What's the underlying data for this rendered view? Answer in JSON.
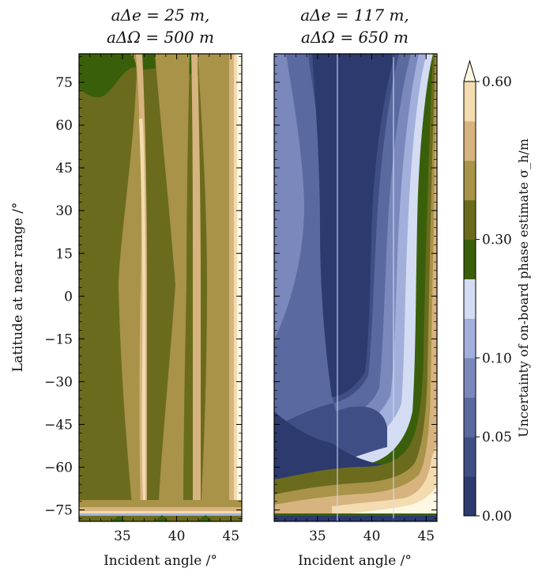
{
  "chart_data": [
    {
      "type": "contour",
      "title_line1": "aΔe = 25 m,",
      "title_line2": "aΔΩ = 500 m",
      "xlabel": "Incident angle /°",
      "ylabel": "Latitude at near range /°",
      "xlim": [
        31,
        46
      ],
      "ylim": [
        -79,
        85
      ],
      "xticks": [
        "35",
        "40",
        "45"
      ],
      "xtick_values": [
        35,
        40,
        45
      ],
      "yticks": [
        "75",
        "60",
        "45",
        "30",
        "15",
        "0",
        "−15",
        "−30",
        "−45",
        "−60",
        "−75"
      ],
      "ytick_values": [
        75,
        60,
        45,
        30,
        15,
        0,
        -15,
        -30,
        -45,
        -60,
        -75
      ],
      "dominant_level_range": [
        0.2,
        0.3
      ],
      "beam_boundaries_deg": [
        36.6,
        41.8
      ]
    },
    {
      "type": "contour",
      "title_line1": "aΔe = 117 m,",
      "title_line2": "aΔΩ = 650 m",
      "xlabel": "Incident angle /°",
      "xlim": [
        31,
        46
      ],
      "ylim": [
        -79,
        85
      ],
      "xticks": [
        "35",
        "40",
        "45"
      ],
      "xtick_values": [
        35,
        40,
        45
      ],
      "dominant_level_range": [
        0.0,
        0.05
      ],
      "beam_boundaries_deg": [
        36.6,
        41.8
      ]
    }
  ],
  "colorbar": {
    "label": "Uncertainty of on-board phase estimate σ_h/m",
    "tick_labels": [
      "0.00",
      "0.05",
      "0.10",
      "0.30",
      "0.60"
    ],
    "tick_values": [
      0.0,
      0.05,
      0.1,
      0.3,
      0.6
    ],
    "levels": [
      0.0,
      0.025,
      0.05,
      0.075,
      0.1,
      0.15,
      0.2,
      0.3,
      0.4,
      0.5,
      0.55,
      0.6
    ],
    "colors": [
      "#2c3a6e",
      "#3f4f86",
      "#5a6aa0",
      "#7a88bc",
      "#a3afdb",
      "#d4dcf3",
      "#3a5f0b",
      "#6b6b1e",
      "#a89348",
      "#d7b47f",
      "#f3dcb0"
    ],
    "extend_color": "#fdf8e4"
  }
}
